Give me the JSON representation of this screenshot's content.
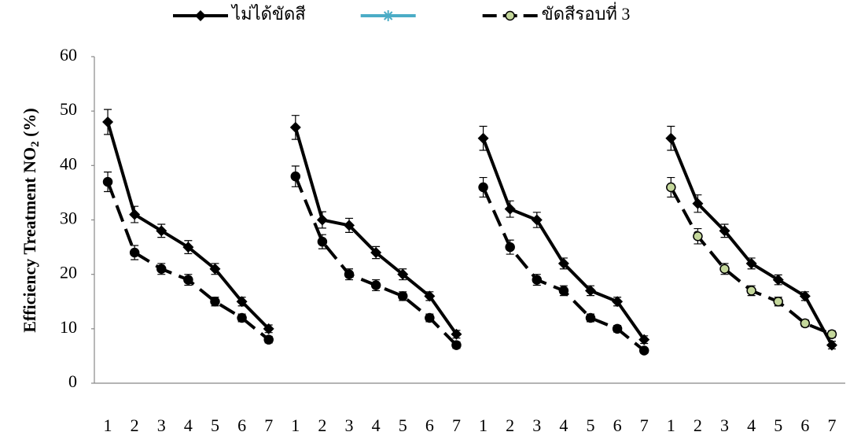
{
  "chart_data": {
    "type": "line",
    "ylabel": [
      "Efficiency Treatment NO",
      "2",
      " (%)"
    ],
    "categories": [
      "1",
      "2",
      "3",
      "4",
      "5",
      "6",
      "7"
    ],
    "panels": 4,
    "ylim": [
      0,
      60
    ],
    "yticks": [
      0,
      10,
      20,
      30,
      40,
      50,
      60
    ],
    "grid": false,
    "series": [
      {
        "name": "ไม่ได้ขัดสี",
        "color": "#000000",
        "marker": "diamond",
        "dash": false,
        "values": [
          [
            48,
            31,
            28,
            25,
            21,
            15,
            10
          ],
          [
            47,
            30,
            29,
            24,
            20,
            16,
            9
          ],
          [
            45,
            32,
            30,
            22,
            17,
            15,
            8
          ],
          [
            45,
            33,
            28,
            22,
            19,
            16,
            7
          ]
        ],
        "errors": [
          [
            2.3,
            1.5,
            1.2,
            1.2,
            1,
            0.8,
            0.7
          ],
          [
            2.2,
            1.5,
            1.3,
            1.1,
            1,
            0.8,
            0.7
          ],
          [
            2.2,
            1.5,
            1.4,
            1,
            0.9,
            0.8,
            0.7
          ],
          [
            2.2,
            1.6,
            1.2,
            1,
            0.9,
            0.8,
            0.7
          ]
        ]
      },
      {
        "name": null,
        "color": "#4bacc6",
        "marker": "star",
        "dash": false,
        "values": [
          [
            null,
            null,
            null,
            null,
            null,
            null,
            null
          ],
          [
            null,
            null,
            null,
            null,
            null,
            null,
            null
          ],
          [
            null,
            null,
            null,
            null,
            null,
            null,
            null
          ],
          [
            null,
            null,
            null,
            null,
            null,
            null,
            null
          ]
        ]
      },
      {
        "name": "ขัดสีรอบที่ 3",
        "color": "#000000",
        "marker": "circle",
        "dash": true,
        "marker_fill": [
          "#000000",
          "#000000",
          "#000000",
          "#c4d79b"
        ],
        "values": [
          [
            37,
            24,
            21,
            19,
            15,
            12,
            8
          ],
          [
            38,
            26,
            20,
            18,
            16,
            12,
            7
          ],
          [
            36,
            25,
            19,
            17,
            12,
            10,
            6
          ],
          [
            36,
            27,
            21,
            17,
            15,
            11,
            9
          ]
        ],
        "errors": [
          [
            1.8,
            1.3,
            1,
            1,
            0.8,
            0.7,
            0.6
          ],
          [
            1.9,
            1.3,
            1,
            1,
            0.8,
            0.7,
            0.6
          ],
          [
            1.8,
            1.3,
            1,
            0.9,
            0.7,
            0.6,
            0.5
          ],
          [
            1.8,
            1.4,
            1,
            0.9,
            0.8,
            0.6,
            0.6
          ]
        ]
      }
    ]
  }
}
